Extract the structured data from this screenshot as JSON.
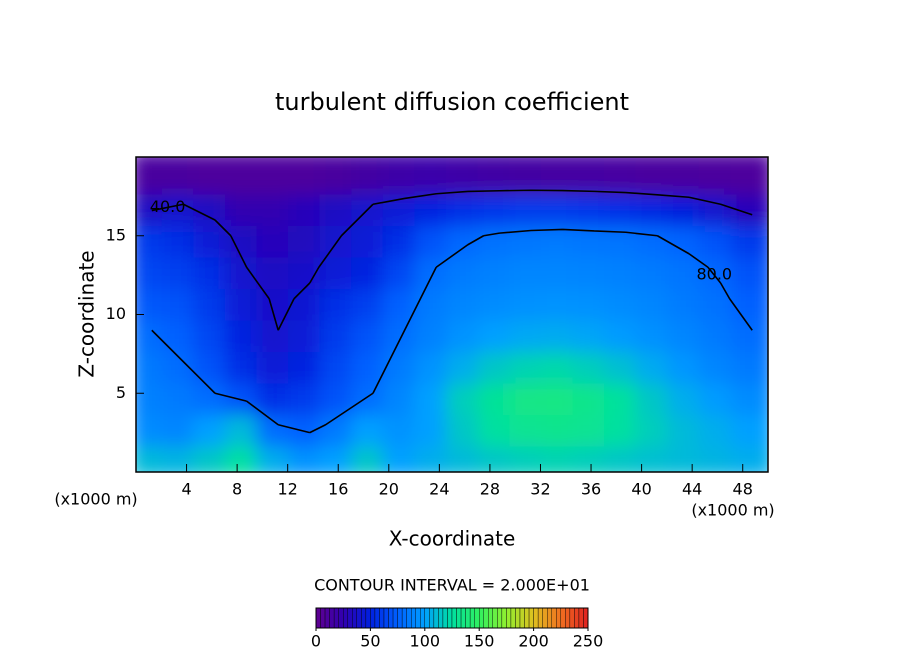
{
  "chart_data": {
    "type": "contour",
    "title": "turbulent diffusion coefficient",
    "x_label": "X-coordinate",
    "y_label": "Z-coordinate",
    "x_unit": "(x1000 m)",
    "y_unit": "(x1000 m)",
    "annotation": "CONTOUR INTERVAL = 2.000E+01",
    "xlim": [
      0,
      50
    ],
    "xticks": [
      4,
      8,
      12,
      16,
      20,
      24,
      28,
      32,
      36,
      40,
      44,
      48
    ],
    "ylim": [
      0,
      20
    ],
    "yticks": [
      5,
      10,
      15
    ],
    "x": [
      1.25,
      3.75,
      6.25,
      8.75,
      11.25,
      13.75,
      16.25,
      18.75,
      21.25,
      23.75,
      26.25,
      28.75,
      31.25,
      33.75,
      36.25,
      38.75,
      41.25,
      43.75,
      46.25,
      48.75
    ],
    "y": [
      1,
      3,
      5,
      7,
      9,
      11,
      13,
      15,
      17,
      19
    ],
    "z": [
      [
        110,
        108,
        115,
        125,
        105,
        95,
        100,
        115,
        100,
        105,
        110,
        115,
        118,
        120,
        118,
        115,
        112,
        110,
        108,
        105
      ],
      [
        92,
        90,
        100,
        110,
        80,
        75,
        85,
        100,
        95,
        100,
        115,
        125,
        130,
        132,
        130,
        125,
        118,
        110,
        105,
        100
      ],
      [
        88,
        85,
        80,
        70,
        55,
        60,
        70,
        80,
        90,
        100,
        118,
        128,
        135,
        136,
        133,
        126,
        115,
        105,
        98,
        92
      ],
      [
        85,
        80,
        70,
        55,
        45,
        50,
        65,
        75,
        85,
        95,
        105,
        115,
        120,
        122,
        118,
        112,
        104,
        96,
        90,
        85
      ],
      [
        80,
        75,
        65,
        50,
        40,
        45,
        60,
        70,
        80,
        88,
        95,
        100,
        103,
        104,
        102,
        98,
        94,
        90,
        85,
        80
      ],
      [
        72,
        70,
        60,
        45,
        38,
        42,
        55,
        62,
        75,
        85,
        90,
        92,
        94,
        95,
        94,
        92,
        90,
        86,
        82,
        75
      ],
      [
        65,
        62,
        55,
        40,
        35,
        38,
        45,
        50,
        65,
        80,
        85,
        88,
        90,
        90,
        89,
        88,
        86,
        83,
        78,
        70
      ],
      [
        60,
        55,
        45,
        35,
        30,
        32,
        40,
        45,
        55,
        70,
        78,
        82,
        84,
        85,
        84,
        83,
        80,
        76,
        70,
        60
      ],
      [
        35,
        40,
        35,
        25,
        25,
        30,
        35,
        40,
        45,
        50,
        55,
        58,
        60,
        60,
        58,
        56,
        52,
        48,
        40,
        30
      ],
      [
        12,
        12,
        10,
        10,
        10,
        10,
        12,
        15,
        18,
        20,
        18,
        16,
        15,
        14,
        14,
        13,
        12,
        12,
        11,
        10
      ]
    ],
    "contour_levels": [
      {
        "value": 40,
        "label": "40.0"
      },
      {
        "value": 80,
        "label": "80.0"
      }
    ],
    "colormap": [
      "#600090",
      "#3000b0",
      "#0020e0",
      "#0060ff",
      "#00a0ff",
      "#00e0a0",
      "#30f060",
      "#90f030",
      "#e0c020",
      "#f07020",
      "#e02020"
    ],
    "clim": [
      0,
      250
    ],
    "cticks": [
      0,
      50,
      100,
      150,
      200,
      250
    ]
  }
}
